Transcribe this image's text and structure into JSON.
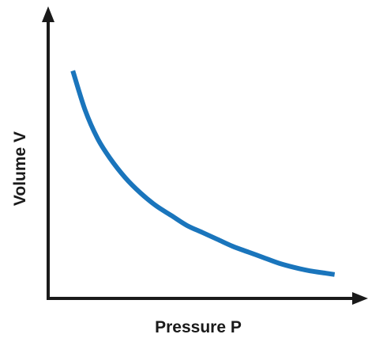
{
  "chart_data": {
    "type": "line",
    "title": "",
    "xlabel": "Pressure P",
    "ylabel": "Volume V",
    "grid": false,
    "legend": "none",
    "x_ticks_shown": false,
    "y_ticks_shown": false,
    "xlim": [
      0,
      10
    ],
    "ylim": [
      0,
      10
    ],
    "series": [
      {
        "color": "#1a75bc",
        "x": [
          0.8,
          1.2,
          1.6,
          2.0,
          2.5,
          3.0,
          3.5,
          4.0,
          4.5,
          5.0,
          5.5,
          6.0,
          6.5,
          7.0,
          7.5,
          8.0,
          8.5,
          9.0,
          9.3
        ],
        "y": [
          8.1,
          6.7,
          5.7,
          5.0,
          4.3,
          3.75,
          3.3,
          2.95,
          2.6,
          2.35,
          2.1,
          1.85,
          1.65,
          1.45,
          1.25,
          1.1,
          0.98,
          0.9,
          0.85
        ]
      }
    ]
  },
  "colors": {
    "axis": "#1a1a1a",
    "curve": "#1a75bc",
    "background": "#ffffff"
  }
}
